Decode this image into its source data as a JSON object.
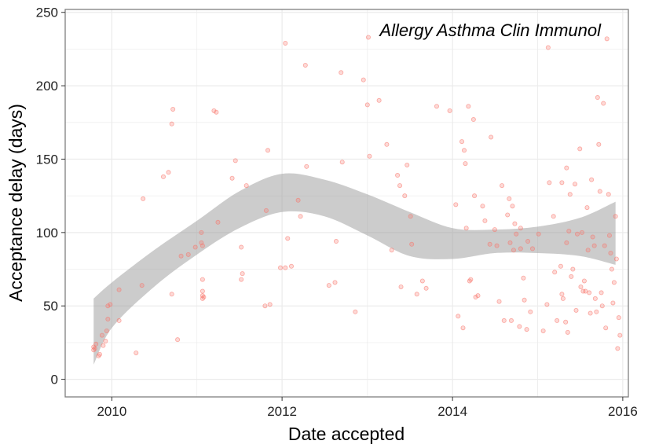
{
  "chart_data": {
    "type": "scatter",
    "title": "",
    "annotation": "Allergy Asthma Clin Immunol",
    "xlabel": "Date accepted",
    "ylabel": "Acceptance delay (days)",
    "xlim": [
      "2009-06-15",
      "2016-01-25"
    ],
    "ylim": [
      -12,
      252
    ],
    "xticks": [
      {
        "label": "2010",
        "date": "2010-01-01"
      },
      {
        "label": "2012",
        "date": "2012-01-01"
      },
      {
        "label": "2014",
        "date": "2014-01-01"
      },
      {
        "label": "2016",
        "date": "2016-01-01"
      }
    ],
    "yticks": [
      0,
      50,
      100,
      150,
      200,
      250
    ],
    "grid": true,
    "legend": "none",
    "colors": {
      "points": "#f8766d",
      "band": "#999999",
      "grid": "#ebebeb",
      "frame": "#7f7f7f"
    },
    "series": [
      {
        "values": [
          [
            "2009-10-15",
            20
          ],
          [
            "2009-10-15",
            22
          ],
          [
            "2009-10-20",
            21
          ],
          [
            "2009-10-25",
            24
          ],
          [
            "2009-11-05",
            16
          ],
          [
            "2009-11-10",
            17
          ],
          [
            "2009-11-20",
            30
          ],
          [
            "2009-11-25",
            23
          ],
          [
            "2009-12-05",
            26
          ],
          [
            "2009-12-10",
            33
          ],
          [
            "2009-12-15",
            41
          ],
          [
            "2009-12-15",
            50
          ],
          [
            "2009-12-25",
            51
          ],
          [
            "2010-02-01",
            40
          ],
          [
            "2010-02-01",
            61
          ],
          [
            "2010-04-15",
            18
          ],
          [
            "2010-05-10",
            64
          ],
          [
            "2010-05-15",
            123
          ],
          [
            "2010-08-10",
            138
          ],
          [
            "2010-09-01",
            141
          ],
          [
            "2010-09-15",
            58
          ],
          [
            "2010-09-15",
            174
          ],
          [
            "2010-09-20",
            184
          ],
          [
            "2010-10-10",
            27
          ],
          [
            "2010-10-25",
            84
          ],
          [
            "2010-11-25",
            85
          ],
          [
            "2010-12-25",
            90
          ],
          [
            "2011-01-20",
            93
          ],
          [
            "2011-01-20",
            100
          ],
          [
            "2011-01-25",
            55
          ],
          [
            "2011-01-25",
            57
          ],
          [
            "2011-01-25",
            60
          ],
          [
            "2011-01-25",
            68
          ],
          [
            "2011-01-25",
            91
          ],
          [
            "2011-01-30",
            56
          ],
          [
            "2011-03-15",
            183
          ],
          [
            "2011-03-25",
            182
          ],
          [
            "2011-04-01",
            107
          ],
          [
            "2011-06-01",
            137
          ],
          [
            "2011-06-15",
            149
          ],
          [
            "2011-07-10",
            90
          ],
          [
            "2011-07-10",
            68
          ],
          [
            "2011-07-15",
            72
          ],
          [
            "2011-08-01",
            132
          ],
          [
            "2011-10-20",
            50
          ],
          [
            "2011-10-25",
            115
          ],
          [
            "2011-11-01",
            156
          ],
          [
            "2011-11-10",
            51
          ],
          [
            "2011-12-25",
            76
          ],
          [
            "2012-01-15",
            76
          ],
          [
            "2012-01-15",
            229
          ],
          [
            "2012-01-25",
            96
          ],
          [
            "2012-02-10",
            77
          ],
          [
            "2012-03-10",
            122
          ],
          [
            "2012-03-20",
            111
          ],
          [
            "2012-04-10",
            214
          ],
          [
            "2012-04-15",
            145
          ],
          [
            "2012-07-20",
            64
          ],
          [
            "2012-08-15",
            66
          ],
          [
            "2012-08-20",
            94
          ],
          [
            "2012-09-10",
            209
          ],
          [
            "2012-09-15",
            148
          ],
          [
            "2012-11-10",
            46
          ],
          [
            "2012-12-15",
            204
          ],
          [
            "2013-01-01",
            187
          ],
          [
            "2013-01-05",
            233
          ],
          [
            "2013-01-10",
            152
          ],
          [
            "2013-02-20",
            190
          ],
          [
            "2013-03-25",
            160
          ],
          [
            "2013-04-15",
            88
          ],
          [
            "2013-05-10",
            139
          ],
          [
            "2013-05-20",
            132
          ],
          [
            "2013-05-25",
            63
          ],
          [
            "2013-06-10",
            125
          ],
          [
            "2013-06-20",
            146
          ],
          [
            "2013-07-05",
            111
          ],
          [
            "2013-07-10",
            92
          ],
          [
            "2013-08-01",
            58
          ],
          [
            "2013-08-25",
            67
          ],
          [
            "2013-09-10",
            62
          ],
          [
            "2013-10-25",
            186
          ],
          [
            "2013-12-20",
            183
          ],
          [
            "2014-01-15",
            119
          ],
          [
            "2014-01-25",
            43
          ],
          [
            "2014-02-10",
            162
          ],
          [
            "2014-02-15",
            35
          ],
          [
            "2014-02-20",
            156
          ],
          [
            "2014-02-25",
            147
          ],
          [
            "2014-03-01",
            103
          ],
          [
            "2014-03-10",
            186
          ],
          [
            "2014-03-15",
            67
          ],
          [
            "2014-03-20",
            68
          ],
          [
            "2014-04-01",
            177
          ],
          [
            "2014-04-05",
            125
          ],
          [
            "2014-04-10",
            56
          ],
          [
            "2014-04-20",
            57
          ],
          [
            "2014-05-10",
            118
          ],
          [
            "2014-05-20",
            108
          ],
          [
            "2014-06-10",
            92
          ],
          [
            "2014-06-15",
            165
          ],
          [
            "2014-07-01",
            102
          ],
          [
            "2014-07-10",
            91
          ],
          [
            "2014-07-20",
            53
          ],
          [
            "2014-08-01",
            132
          ],
          [
            "2014-08-10",
            40
          ],
          [
            "2014-08-25",
            112
          ],
          [
            "2014-09-01",
            123
          ],
          [
            "2014-09-05",
            93
          ],
          [
            "2014-09-10",
            40
          ],
          [
            "2014-09-15",
            118
          ],
          [
            "2014-09-20",
            88
          ],
          [
            "2014-09-25",
            106
          ],
          [
            "2014-10-01",
            99
          ],
          [
            "2014-10-15",
            36
          ],
          [
            "2014-10-20",
            103
          ],
          [
            "2014-10-20",
            89
          ],
          [
            "2014-11-01",
            69
          ],
          [
            "2014-11-05",
            54
          ],
          [
            "2014-11-15",
            34
          ],
          [
            "2014-11-20",
            94
          ],
          [
            "2014-12-01",
            46
          ],
          [
            "2014-12-10",
            89
          ],
          [
            "2015-01-05",
            99
          ],
          [
            "2015-01-25",
            33
          ],
          [
            "2015-02-10",
            51
          ],
          [
            "2015-02-15",
            226
          ],
          [
            "2015-02-20",
            134
          ],
          [
            "2015-03-10",
            111
          ],
          [
            "2015-03-15",
            73
          ],
          [
            "2015-03-25",
            40
          ],
          [
            "2015-04-10",
            77
          ],
          [
            "2015-04-15",
            134
          ],
          [
            "2015-04-15",
            58
          ],
          [
            "2015-04-20",
            55
          ],
          [
            "2015-05-01",
            39
          ],
          [
            "2015-05-05",
            144
          ],
          [
            "2015-05-05",
            93
          ],
          [
            "2015-05-10",
            32
          ],
          [
            "2015-05-15",
            101
          ],
          [
            "2015-05-20",
            126
          ],
          [
            "2015-05-25",
            70
          ],
          [
            "2015-06-01",
            75
          ],
          [
            "2015-06-10",
            133
          ],
          [
            "2015-06-15",
            47
          ],
          [
            "2015-06-20",
            99
          ],
          [
            "2015-07-01",
            157
          ],
          [
            "2015-07-05",
            63
          ],
          [
            "2015-07-10",
            100
          ],
          [
            "2015-07-15",
            60
          ],
          [
            "2015-07-20",
            67
          ],
          [
            "2015-07-25",
            60
          ],
          [
            "2015-08-01",
            117
          ],
          [
            "2015-08-05",
            88
          ],
          [
            "2015-08-10",
            59
          ],
          [
            "2015-08-15",
            45
          ],
          [
            "2015-08-20",
            136
          ],
          [
            "2015-08-25",
            97
          ],
          [
            "2015-09-01",
            91
          ],
          [
            "2015-09-05",
            55
          ],
          [
            "2015-09-10",
            46
          ],
          [
            "2015-09-15",
            192
          ],
          [
            "2015-09-20",
            160
          ],
          [
            "2015-09-25",
            128
          ],
          [
            "2015-10-01",
            59
          ],
          [
            "2015-10-05",
            50
          ],
          [
            "2015-10-10",
            188
          ],
          [
            "2015-10-15",
            91
          ],
          [
            "2015-10-20",
            35
          ],
          [
            "2015-10-25",
            232
          ],
          [
            "2015-11-01",
            126
          ],
          [
            "2015-11-05",
            98
          ],
          [
            "2015-11-10",
            86
          ],
          [
            "2015-11-15",
            75
          ],
          [
            "2015-11-20",
            52
          ],
          [
            "2015-11-25",
            66
          ],
          [
            "2015-12-01",
            111
          ],
          [
            "2015-12-05",
            82
          ],
          [
            "2015-12-10",
            21
          ],
          [
            "2015-12-15",
            42
          ],
          [
            "2015-12-20",
            30
          ]
        ]
      }
    ],
    "smooth_band": {
      "x": [
        "2009-10-15",
        "2010-01-01",
        "2010-07-01",
        "2011-01-01",
        "2011-07-01",
        "2012-01-01",
        "2012-07-01",
        "2013-01-01",
        "2013-07-01",
        "2014-01-01",
        "2014-07-01",
        "2015-01-01",
        "2015-07-01",
        "2015-12-01"
      ],
      "upper": [
        55,
        66,
        88,
        108,
        128,
        140,
        136,
        126,
        114,
        103,
        102,
        104,
        110,
        121
      ],
      "lower": [
        10,
        35,
        63,
        85,
        103,
        114,
        111,
        98,
        84,
        82,
        86,
        86,
        84,
        78
      ]
    }
  }
}
